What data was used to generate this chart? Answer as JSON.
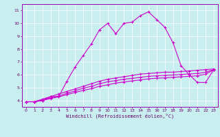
{
  "xlabel": "Windchill (Refroidissement éolien,°C)",
  "bg_color": "#c8eef0",
  "line_color": "#cc00cc",
  "grid_color": "#ffffff",
  "spine_color": "#9900aa",
  "tick_color": "#660066",
  "xlim": [
    -0.5,
    23.5
  ],
  "ylim": [
    3.5,
    11.5
  ],
  "xticks": [
    0,
    1,
    2,
    3,
    4,
    5,
    6,
    7,
    8,
    9,
    10,
    11,
    12,
    13,
    14,
    15,
    16,
    17,
    18,
    19,
    20,
    21,
    22,
    23
  ],
  "yticks": [
    4,
    5,
    6,
    7,
    8,
    9,
    10,
    11
  ],
  "series1_x": [
    0,
    1,
    2,
    3,
    4,
    5,
    6,
    7,
    8,
    9,
    10,
    11,
    12,
    13,
    14,
    15,
    16,
    17,
    18,
    19,
    20,
    21,
    22,
    23
  ],
  "series1_y": [
    3.9,
    3.9,
    4.0,
    4.3,
    4.3,
    5.5,
    6.6,
    7.5,
    8.4,
    9.5,
    10.0,
    9.2,
    10.0,
    10.1,
    10.6,
    10.9,
    10.3,
    9.7,
    8.5,
    6.7,
    6.0,
    5.4,
    5.4,
    6.4
  ],
  "series2_x": [
    0,
    1,
    2,
    3,
    4,
    5,
    6,
    7,
    8,
    9,
    10,
    11,
    12,
    13,
    14,
    15,
    16,
    17,
    18,
    19,
    20,
    21,
    22,
    23
  ],
  "series2_y": [
    3.9,
    3.9,
    4.1,
    4.3,
    4.5,
    4.7,
    4.9,
    5.1,
    5.3,
    5.5,
    5.65,
    5.75,
    5.85,
    5.95,
    6.05,
    6.1,
    6.15,
    6.2,
    6.2,
    6.25,
    6.3,
    6.35,
    6.4,
    6.45
  ],
  "series3_x": [
    0,
    1,
    2,
    3,
    4,
    5,
    6,
    7,
    8,
    9,
    10,
    11,
    12,
    13,
    14,
    15,
    16,
    17,
    18,
    19,
    20,
    21,
    22,
    23
  ],
  "series3_y": [
    3.9,
    3.9,
    4.0,
    4.2,
    4.35,
    4.55,
    4.75,
    4.95,
    5.1,
    5.3,
    5.45,
    5.55,
    5.65,
    5.72,
    5.8,
    5.88,
    5.92,
    5.95,
    5.98,
    6.02,
    6.06,
    6.1,
    6.2,
    6.4
  ],
  "series4_x": [
    0,
    1,
    2,
    3,
    4,
    5,
    6,
    7,
    8,
    9,
    10,
    11,
    12,
    13,
    14,
    15,
    16,
    17,
    18,
    19,
    20,
    21,
    22,
    23
  ],
  "series4_y": [
    3.9,
    3.9,
    4.0,
    4.15,
    4.28,
    4.45,
    4.62,
    4.78,
    4.92,
    5.1,
    5.22,
    5.35,
    5.44,
    5.52,
    5.6,
    5.68,
    5.73,
    5.76,
    5.8,
    5.84,
    5.88,
    5.92,
    6.05,
    6.38
  ]
}
